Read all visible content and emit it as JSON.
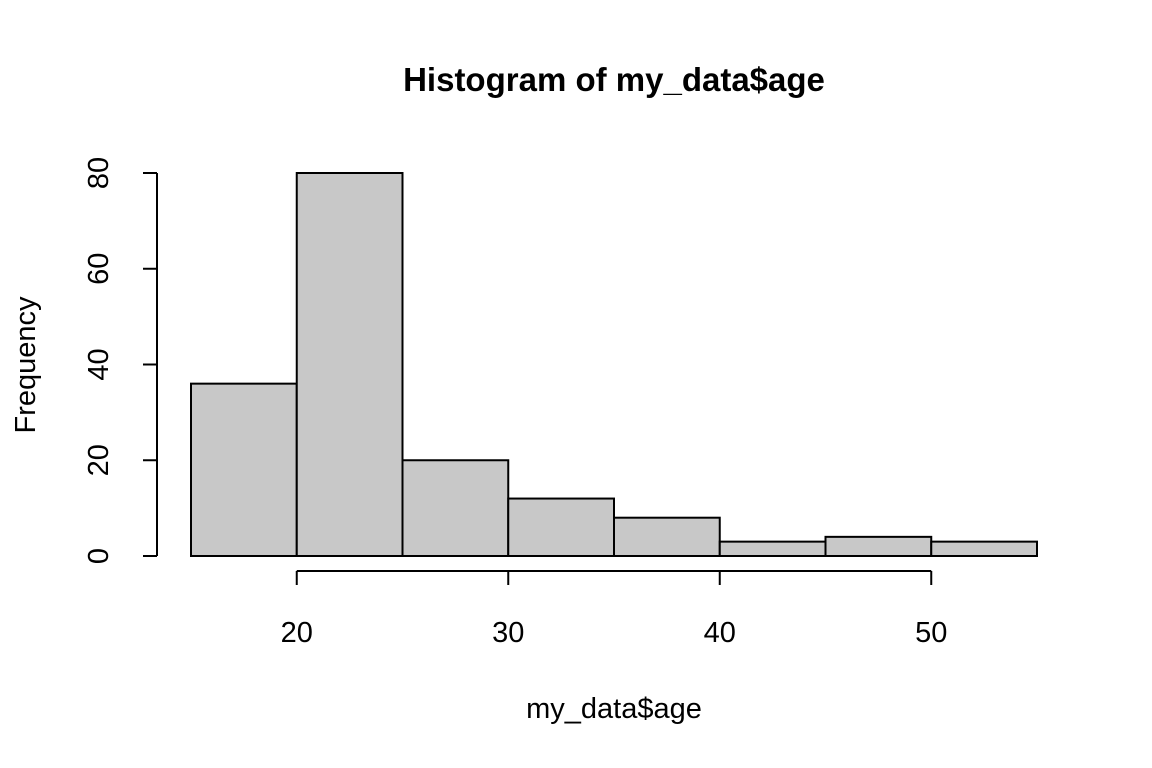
{
  "chart_data": {
    "type": "bar",
    "title": "Histogram of my_data$age",
    "xlabel": "my_data$age",
    "ylabel": "Frequency",
    "bins": [
      {
        "from": 15,
        "to": 20,
        "count": 36
      },
      {
        "from": 20,
        "to": 25,
        "count": 80
      },
      {
        "from": 25,
        "to": 30,
        "count": 20
      },
      {
        "from": 30,
        "to": 35,
        "count": 12
      },
      {
        "from": 35,
        "to": 40,
        "count": 8
      },
      {
        "from": 40,
        "to": 45,
        "count": 3
      },
      {
        "from": 45,
        "to": 50,
        "count": 4
      },
      {
        "from": 50,
        "to": 55,
        "count": 3
      }
    ],
    "xlim": [
      15,
      55
    ],
    "ylim": [
      0,
      80
    ],
    "x_ticks": [
      20,
      30,
      40,
      50
    ],
    "y_ticks": [
      0,
      20,
      40,
      60,
      80
    ],
    "x_tick_labels": [
      "20",
      "30",
      "40",
      "50"
    ],
    "y_tick_labels": [
      "0",
      "20",
      "40",
      "60",
      "80"
    ],
    "bar_fill": "#c8c8c8",
    "bar_stroke": "#000000",
    "grid": false,
    "legend": "none"
  }
}
